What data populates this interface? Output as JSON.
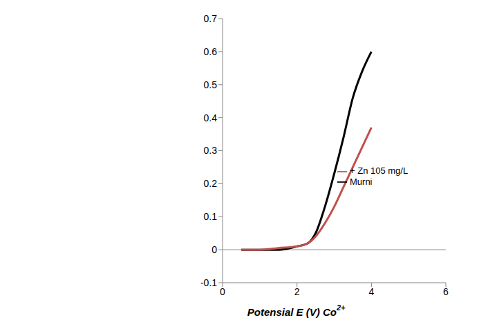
{
  "chart_data": {
    "type": "line",
    "xlabel": "Potensial E (V) Co2+",
    "x": [
      0.5,
      1,
      1.5,
      2,
      2.3,
      2.5,
      2.75,
      3,
      3.25,
      3.5,
      3.75,
      4
    ],
    "series": [
      {
        "name": "Murni",
        "color": "#000000",
        "values": [
          0,
          0,
          0,
          0.01,
          0.02,
          0.05,
          0.13,
          0.23,
          0.34,
          0.46,
          0.54,
          0.6
        ]
      },
      {
        "name": "+ Zn 105 mg/L",
        "color": "#c0504d",
        "values": [
          0,
          0,
          0.005,
          0.01,
          0.02,
          0.04,
          0.08,
          0.13,
          0.19,
          0.25,
          0.31,
          0.37
        ]
      }
    ],
    "xlim": [
      0,
      6
    ],
    "xticks": [
      0,
      2,
      4,
      6
    ],
    "ylim": [
      -0.1,
      0.7
    ],
    "yticks": [
      -0.1,
      0,
      0.1,
      0.2,
      0.3,
      0.4,
      0.5,
      0.6,
      0.7
    ],
    "grid": false,
    "legend": "right"
  }
}
